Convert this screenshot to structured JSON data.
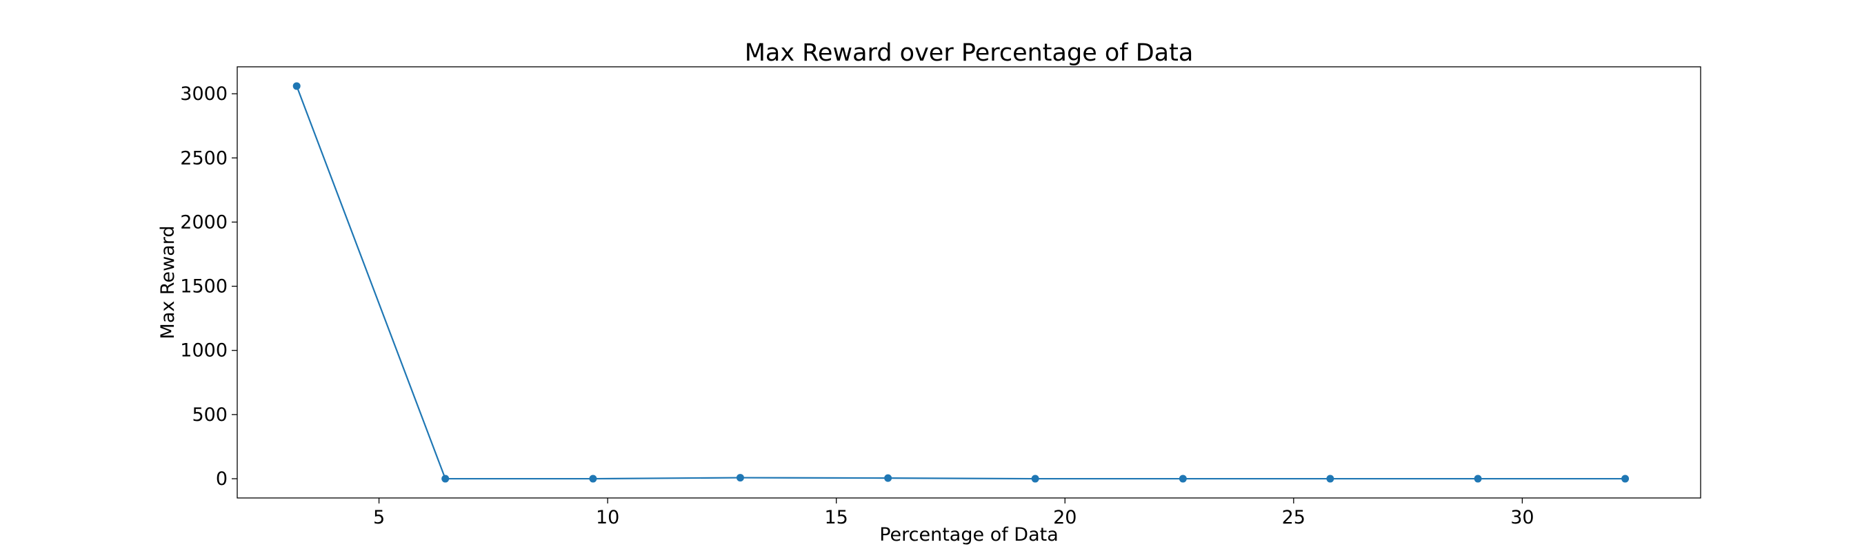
{
  "chart_data": {
    "type": "line",
    "title": "Max Reward over Percentage of Data",
    "xlabel": "Percentage of Data",
    "ylabel": "Max Reward",
    "xlim": [
      1.9,
      33.9
    ],
    "ylim": [
      -150,
      3210
    ],
    "xticks": [
      5,
      10,
      15,
      20,
      25,
      30
    ],
    "yticks": [
      0,
      500,
      1000,
      1500,
      2000,
      2500,
      3000
    ],
    "grid": false,
    "legend": "none",
    "series": [
      {
        "color": "#1f77b4",
        "marker": "circle",
        "x": [
          3.2,
          6.45,
          9.68,
          12.9,
          16.13,
          19.35,
          22.58,
          25.8,
          29.03,
          32.25
        ],
        "y": [
          3060,
          0,
          0,
          8,
          5,
          0,
          0,
          0,
          0,
          0
        ]
      }
    ]
  }
}
